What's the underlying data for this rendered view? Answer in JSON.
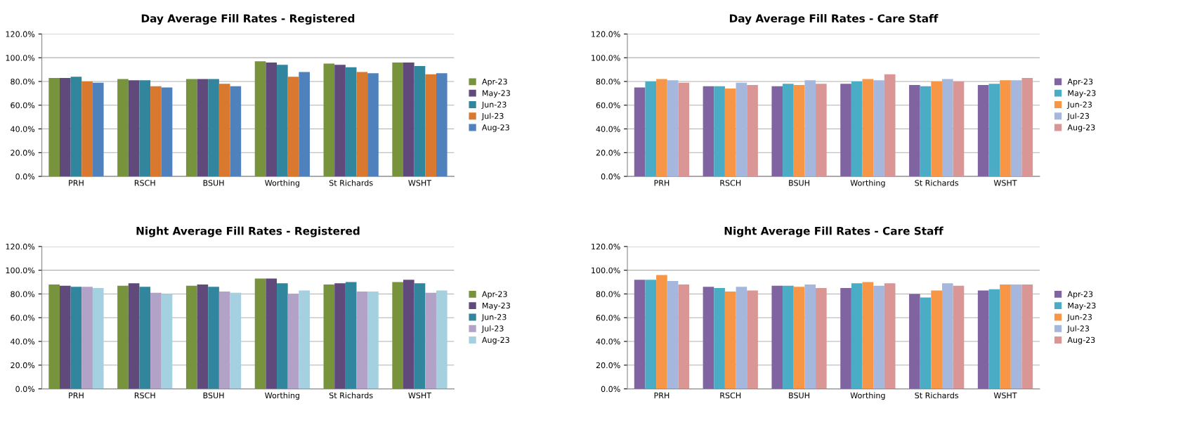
{
  "chart_data": [
    {
      "type": "bar",
      "title": "Day Average Fill Rates - Registered",
      "categories": [
        "PRH",
        "RSCH",
        "BSUH",
        "Worthing",
        "St Richards",
        "WSHT"
      ],
      "series": [
        {
          "name": "Apr-23",
          "color": "#77933c",
          "values": [
            83,
            82,
            82,
            97,
            95,
            96
          ]
        },
        {
          "name": "May-23",
          "color": "#604a7b",
          "values": [
            83,
            81,
            82,
            96,
            94,
            96
          ]
        },
        {
          "name": "Jun-23",
          "color": "#31859c",
          "values": [
            84,
            81,
            82,
            94,
            92,
            93
          ]
        },
        {
          "name": "Jul-23",
          "color": "#d9782f",
          "values": [
            80,
            76,
            78,
            84,
            88,
            86
          ]
        },
        {
          "name": "Aug-23",
          "color": "#4f81bd",
          "values": [
            79,
            75,
            76,
            88,
            87,
            87
          ]
        }
      ],
      "ylim": [
        0,
        120
      ],
      "yticks": [
        {
          "value": 0,
          "label": "0.0%"
        },
        {
          "value": 20,
          "label": "20.0%"
        },
        {
          "value": 40,
          "label": "40.0%"
        },
        {
          "value": 60,
          "label": "60.0%"
        },
        {
          "value": 80,
          "label": "80.0%"
        },
        {
          "value": 100,
          "label": "100.0%"
        },
        {
          "value": 120,
          "label": "120.0%"
        }
      ],
      "grid": "y",
      "legend": "right"
    },
    {
      "type": "bar",
      "title": "Day Average Fill Rates - Care Staff",
      "categories": [
        "PRH",
        "RSCH",
        "BSUH",
        "Worthing",
        "St Richards",
        "WSHT"
      ],
      "series": [
        {
          "name": "Apr-23",
          "color": "#8064a2",
          "values": [
            75,
            76,
            76,
            78,
            77,
            77
          ]
        },
        {
          "name": "May-23",
          "color": "#4bacc6",
          "values": [
            80,
            76,
            78,
            80,
            76,
            78
          ]
        },
        {
          "name": "Jun-23",
          "color": "#f79646",
          "values": [
            82,
            74,
            77,
            82,
            80,
            81
          ]
        },
        {
          "name": "Jul-23",
          "color": "#a6b7dd",
          "values": [
            81,
            79,
            81,
            81,
            82,
            81
          ]
        },
        {
          "name": "Aug-23",
          "color": "#d99694",
          "values": [
            79,
            77,
            78,
            86,
            80,
            83
          ]
        }
      ],
      "ylim": [
        0,
        120
      ],
      "yticks": [
        {
          "value": 0,
          "label": "0.0%"
        },
        {
          "value": 20,
          "label": "20.0%"
        },
        {
          "value": 40,
          "label": "40.0%"
        },
        {
          "value": 60,
          "label": "60.0%"
        },
        {
          "value": 80,
          "label": "80.0%"
        },
        {
          "value": 100,
          "label": "100.0%"
        },
        {
          "value": 120,
          "label": "120.0%"
        }
      ],
      "grid": "y",
      "legend": "right"
    },
    {
      "type": "bar",
      "title": "Night Average Fill Rates - Registered",
      "categories": [
        "PRH",
        "RSCH",
        "BSUH",
        "Worthing",
        "St Richards",
        "WSHT"
      ],
      "series": [
        {
          "name": "Apr-23",
          "color": "#77933c",
          "values": [
            88,
            87,
            87,
            93,
            88,
            90
          ]
        },
        {
          "name": "May-23",
          "color": "#604a7b",
          "values": [
            87,
            89,
            88,
            93,
            89,
            92
          ]
        },
        {
          "name": "Jun-23",
          "color": "#31859c",
          "values": [
            86,
            86,
            86,
            89,
            90,
            89
          ]
        },
        {
          "name": "Jul-23",
          "color": "#b3a2c7",
          "values": [
            86,
            81,
            82,
            80,
            82,
            81
          ]
        },
        {
          "name": "Aug-23",
          "color": "#a5d0e0",
          "values": [
            85,
            80,
            81,
            83,
            82,
            83
          ]
        }
      ],
      "ylim": [
        0,
        120
      ],
      "yticks": [
        {
          "value": 0,
          "label": "0.0%"
        },
        {
          "value": 20,
          "label": "20.0%"
        },
        {
          "value": 40,
          "label": "40.0%"
        },
        {
          "value": 60,
          "label": "60.0%"
        },
        {
          "value": 80,
          "label": "80.0%"
        },
        {
          "value": 100,
          "label": "100.0%"
        },
        {
          "value": 120,
          "label": "120.0%"
        }
      ],
      "grid": "y",
      "legend": "right"
    },
    {
      "type": "bar",
      "title": "Night Average Fill Rates - Care Staff",
      "categories": [
        "PRH",
        "RSCH",
        "BSUH",
        "Worthing",
        "St Richards",
        "WSHT"
      ],
      "series": [
        {
          "name": "Apr-23",
          "color": "#8064a2",
          "values": [
            92,
            86,
            87,
            85,
            80,
            83
          ]
        },
        {
          "name": "May-23",
          "color": "#4bacc6",
          "values": [
            92,
            85,
            87,
            89,
            77,
            84
          ]
        },
        {
          "name": "Jun-23",
          "color": "#f79646",
          "values": [
            96,
            82,
            86,
            90,
            83,
            88
          ]
        },
        {
          "name": "Jul-23",
          "color": "#a6b7dd",
          "values": [
            91,
            86,
            88,
            87,
            89,
            88
          ]
        },
        {
          "name": "Aug-23",
          "color": "#d99694",
          "values": [
            88,
            83,
            85,
            89,
            87,
            88
          ]
        }
      ],
      "ylim": [
        0,
        120
      ],
      "yticks": [
        {
          "value": 0,
          "label": "0.0%"
        },
        {
          "value": 20,
          "label": "20.0%"
        },
        {
          "value": 40,
          "label": "40.0%"
        },
        {
          "value": 60,
          "label": "60.0%"
        },
        {
          "value": 80,
          "label": "80.0%"
        },
        {
          "value": 100,
          "label": "100.0%"
        },
        {
          "value": 120,
          "label": "120.0%"
        }
      ],
      "grid": "y",
      "legend": "right"
    }
  ]
}
